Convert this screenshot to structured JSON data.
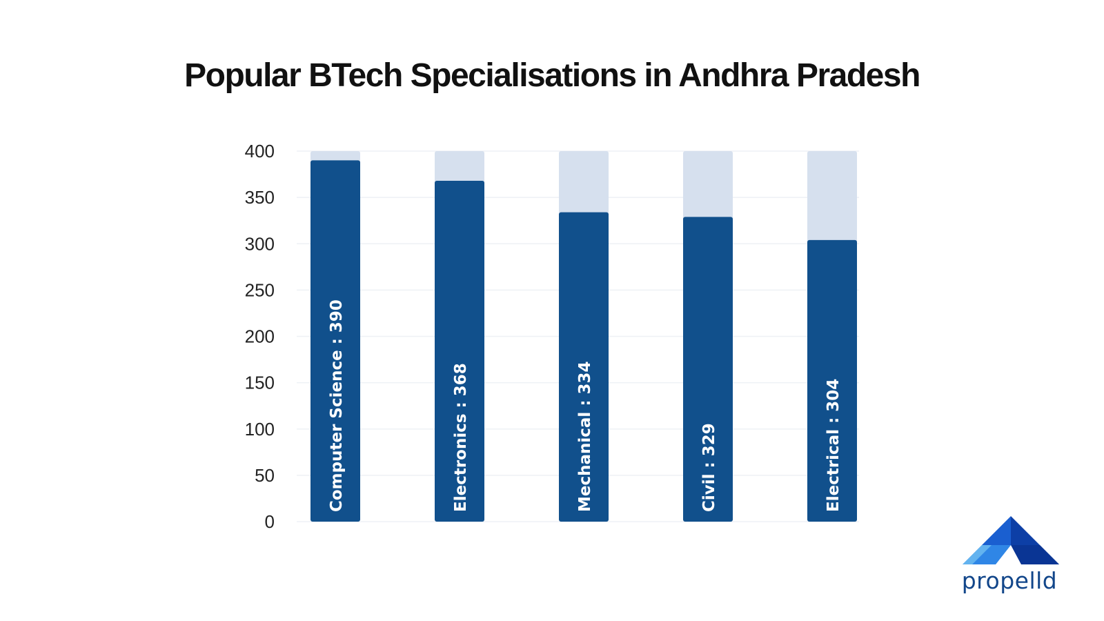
{
  "chart_data": {
    "type": "bar",
    "title": "Popular BTech Specialisations in Andhra Pradesh",
    "categories": [
      "Computer Science",
      "Electronics",
      "Mechanical",
      "Civil",
      "Electrical"
    ],
    "values": [
      390,
      368,
      334,
      329,
      304
    ],
    "bar_labels": [
      "Computer Science : 390",
      "Electronics : 368",
      "Mechanical : 334",
      "Civil  : 329",
      "Electrical : 304"
    ],
    "ylim": [
      0,
      400
    ],
    "yticks": [
      "0",
      "50",
      "100",
      "150",
      "200",
      "250",
      "300",
      "350",
      "400"
    ],
    "xlabel": "",
    "ylabel": "",
    "grid": true,
    "colors": {
      "bar": "#11508c",
      "track": "#d6e0ee",
      "grid": "#eef1f5",
      "title": "#111111"
    }
  },
  "brand": {
    "name": "propelld",
    "colors": [
      "#0d3fa6",
      "#1a5fd0",
      "#2f86e6",
      "#63b3ef"
    ]
  }
}
